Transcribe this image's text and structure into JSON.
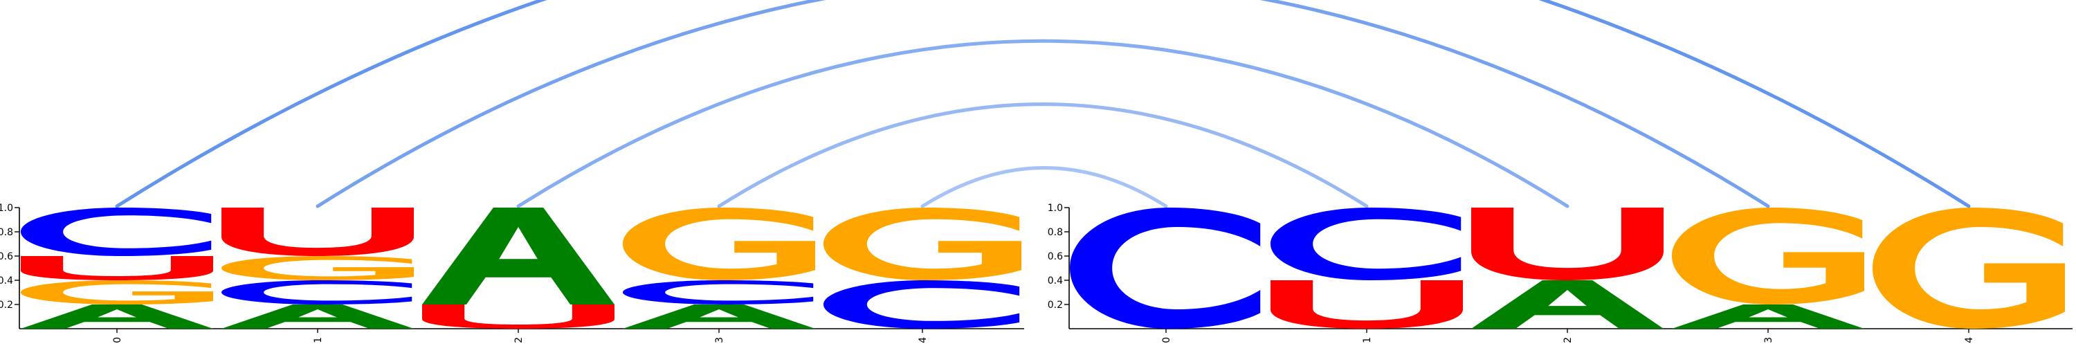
{
  "chart_data": {
    "type": "sequence-logo",
    "colors": {
      "A": "#008000",
      "C": "#0000FF",
      "G": "#FFA500",
      "U": "#FF0000",
      "arc": "#6495ED"
    },
    "y_ticks": [
      "0.2",
      "0.4",
      "0.6",
      "0.8",
      "1.0"
    ],
    "ylim": [
      0,
      1
    ],
    "logos": [
      {
        "positions": [
          {
            "label": "0",
            "stack": [
              {
                "letter": "A",
                "value": 0.2
              },
              {
                "letter": "G",
                "value": 0.2
              },
              {
                "letter": "U",
                "value": 0.2
              },
              {
                "letter": "C",
                "value": 0.4
              }
            ]
          },
          {
            "label": "1",
            "stack": [
              {
                "letter": "A",
                "value": 0.2
              },
              {
                "letter": "C",
                "value": 0.2
              },
              {
                "letter": "G",
                "value": 0.2
              },
              {
                "letter": "U",
                "value": 0.4
              }
            ]
          },
          {
            "label": "2",
            "stack": [
              {
                "letter": "U",
                "value": 0.2
              },
              {
                "letter": "A",
                "value": 0.8
              }
            ]
          },
          {
            "label": "3",
            "stack": [
              {
                "letter": "A",
                "value": 0.2
              },
              {
                "letter": "C",
                "value": 0.2
              },
              {
                "letter": "G",
                "value": 0.6
              }
            ]
          },
          {
            "label": "4",
            "stack": [
              {
                "letter": "C",
                "value": 0.4
              },
              {
                "letter": "G",
                "value": 0.6
              }
            ]
          }
        ]
      },
      {
        "positions": [
          {
            "label": "0",
            "stack": [
              {
                "letter": "C",
                "value": 1.0
              }
            ]
          },
          {
            "label": "1",
            "stack": [
              {
                "letter": "U",
                "value": 0.4
              },
              {
                "letter": "C",
                "value": 0.6
              }
            ]
          },
          {
            "label": "2",
            "stack": [
              {
                "letter": "A",
                "value": 0.4
              },
              {
                "letter": "U",
                "value": 0.6
              }
            ]
          },
          {
            "label": "3",
            "stack": [
              {
                "letter": "A",
                "value": 0.2
              },
              {
                "letter": "G",
                "value": 0.8
              }
            ]
          },
          {
            "label": "4",
            "stack": [
              {
                "letter": "G",
                "value": 1.0
              }
            ]
          }
        ]
      }
    ],
    "pairs": [
      {
        "from": [
          0,
          0
        ],
        "to": [
          1,
          4
        ]
      },
      {
        "from": [
          0,
          1
        ],
        "to": [
          1,
          3
        ]
      },
      {
        "from": [
          0,
          2
        ],
        "to": [
          1,
          2
        ]
      },
      {
        "from": [
          0,
          3
        ],
        "to": [
          1,
          1
        ]
      },
      {
        "from": [
          0,
          4
        ],
        "to": [
          1,
          0
        ]
      }
    ]
  }
}
